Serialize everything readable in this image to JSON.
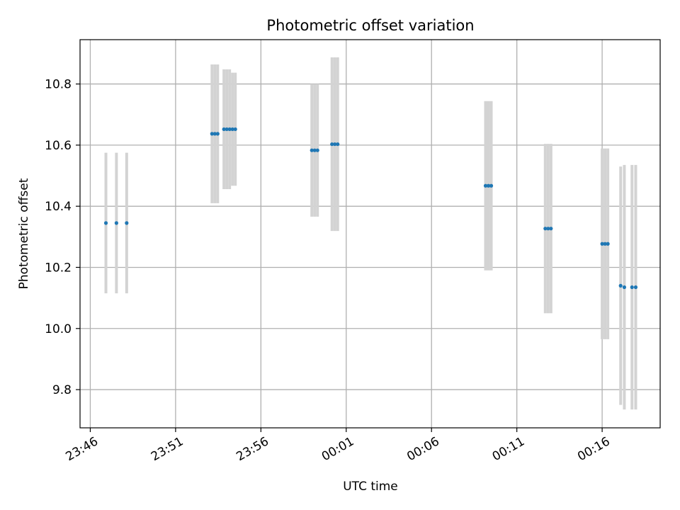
{
  "chart_data": {
    "type": "scatter",
    "title": "Photometric offset variation",
    "xlabel": "UTC time",
    "ylabel": "Photometric offset",
    "x_is_time": true,
    "xlim": [
      "23:45:24",
      "00:19:24"
    ],
    "ylim": [
      9.675,
      10.945
    ],
    "x_ticks": [
      "23:46",
      "23:51",
      "23:56",
      "00:01",
      "00:06",
      "00:11",
      "00:16"
    ],
    "y_ticks": [
      "9.8",
      "10.0",
      "10.2",
      "10.4",
      "10.6",
      "10.8"
    ],
    "grid": true,
    "colors": {
      "marker": "#1f77b4",
      "errorbar": "#d3d3d3",
      "grid": "#b0b0b0"
    },
    "series": [
      {
        "points": [
          {
            "t": "23:46:55",
            "y": 10.345,
            "err": 0.23
          },
          {
            "t": "23:47:32",
            "y": 10.345,
            "err": 0.23
          },
          {
            "t": "23:48:08",
            "y": 10.345,
            "err": 0.23
          },
          {
            "t": "23:53:08",
            "y": 10.637,
            "err": 0.227
          },
          {
            "t": "23:53:18",
            "y": 10.637,
            "err": 0.227
          },
          {
            "t": "23:53:28",
            "y": 10.637,
            "err": 0.227
          },
          {
            "t": "23:53:50",
            "y": 10.652,
            "err": 0.196
          },
          {
            "t": "23:54:00",
            "y": 10.652,
            "err": 0.196
          },
          {
            "t": "23:54:10",
            "y": 10.652,
            "err": 0.196
          },
          {
            "t": "23:54:20",
            "y": 10.652,
            "err": 0.185
          },
          {
            "t": "23:54:30",
            "y": 10.652,
            "err": 0.185
          },
          {
            "t": "23:58:59",
            "y": 10.583,
            "err": 0.217
          },
          {
            "t": "23:59:09",
            "y": 10.583,
            "err": 0.217
          },
          {
            "t": "23:59:19",
            "y": 10.583,
            "err": 0.217
          },
          {
            "t": "00:00:10",
            "y": 10.603,
            "err": 0.284
          },
          {
            "t": "00:00:20",
            "y": 10.603,
            "err": 0.284
          },
          {
            "t": "00:00:30",
            "y": 10.603,
            "err": 0.284
          },
          {
            "t": "00:09:10",
            "y": 10.467,
            "err": 0.277
          },
          {
            "t": "00:09:20",
            "y": 10.467,
            "err": 0.277
          },
          {
            "t": "00:09:30",
            "y": 10.467,
            "err": 0.277
          },
          {
            "t": "00:12:40",
            "y": 10.327,
            "err": 0.277
          },
          {
            "t": "00:12:50",
            "y": 10.327,
            "err": 0.277
          },
          {
            "t": "00:13:00",
            "y": 10.327,
            "err": 0.277
          },
          {
            "t": "00:16:00",
            "y": 10.277,
            "err": 0.312
          },
          {
            "t": "00:16:10",
            "y": 10.277,
            "err": 0.312
          },
          {
            "t": "00:16:20",
            "y": 10.277,
            "err": 0.312
          },
          {
            "t": "00:17:05",
            "y": 10.14,
            "err": 0.39
          },
          {
            "t": "00:17:18",
            "y": 10.135,
            "err": 0.4
          },
          {
            "t": "00:17:45",
            "y": 10.135,
            "err": 0.4
          },
          {
            "t": "00:17:58",
            "y": 10.135,
            "err": 0.4
          }
        ]
      }
    ]
  }
}
